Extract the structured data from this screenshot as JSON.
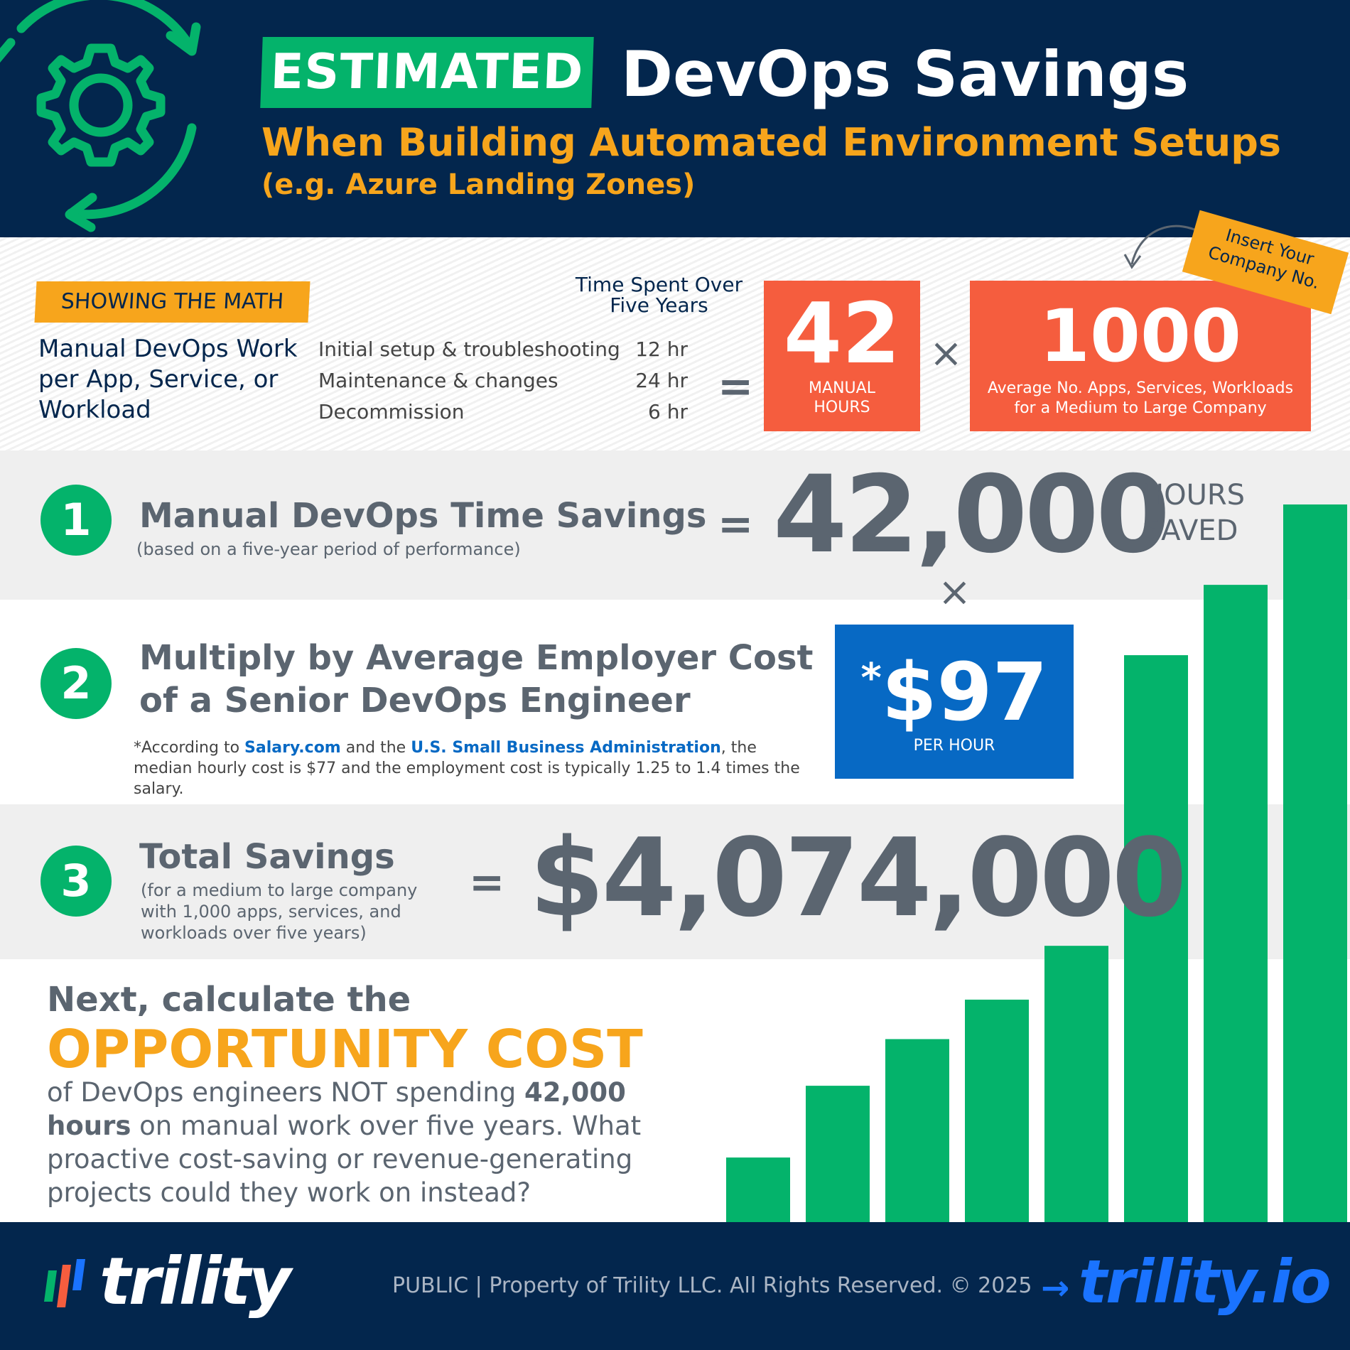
{
  "header": {
    "badge": "ESTIMATED",
    "title": "DevOps Savings",
    "subtitle": "When Building Automated Environment Setups",
    "subtitle_example": "(e.g. Azure Landing Zones)"
  },
  "math": {
    "label": "SHOWING THE MATH",
    "manual_work": "Manual DevOps Work per App, Service, or Workload",
    "time_header": "Time Spent Over Five Years",
    "tasks": [
      {
        "task": "Initial setup & troubleshooting",
        "hours": "12 hr"
      },
      {
        "task": "Maintenance & changes",
        "hours": "24 hr"
      },
      {
        "task": "Decommission",
        "hours": "6 hr"
      }
    ],
    "equals": "=",
    "manual_hours_value": "42",
    "manual_hours_label": "MANUAL HOURS",
    "times": "×",
    "apps_value": "1000",
    "apps_label": "Average No. Apps, Services, Workloads for a Medium to Large Company",
    "insert_note": "Insert Your Company No."
  },
  "step1": {
    "number": "1",
    "title": "Manual DevOps Time Savings",
    "sub": "(based on a five-year period of performance)",
    "equals": "=",
    "value": "42,000",
    "unit": "HOURS SAVED",
    "times": "×"
  },
  "step2": {
    "number": "2",
    "title_line1": "Multiply by Average Employer Cost",
    "title_line2": "of a Senior DevOps Engineer",
    "footnote_prefix": "*According to",
    "footnote_link1": "Salary.com",
    "footnote_mid": "and the",
    "footnote_link2": "U.S. Small Business Administration",
    "footnote_suffix": ", the median hourly cost is $77 and the employment cost is typically 1.25 to 1.4 times the salary.",
    "rate_star": "*",
    "rate_value": "$97",
    "rate_unit": "PER HOUR"
  },
  "step3": {
    "number": "3",
    "title": "Total Savings",
    "sub": "(for a medium to large company with 1,000 apps, services, and workloads over five years)",
    "equals": "=",
    "value": "$4,074,000"
  },
  "cta": {
    "lead": "Next, calculate the",
    "title": "OPPORTUNITY COST",
    "body_prefix": "of DevOps engineers NOT spending",
    "body_bold": "42,000 hours",
    "body_suffix": "on manual work over five years. What proactive cost-saving or revenue-generating projects could they work on instead?"
  },
  "decor_bars": {
    "levels": [
      0.09,
      0.19,
      0.255,
      0.31,
      0.385,
      0.79,
      0.888,
      1.0
    ],
    "color": "#04b36b"
  },
  "footer": {
    "logo_text": "trility",
    "text": "PUBLIC  |  Property of Trility LLC. All Rights Reserved. © 2025",
    "site_arrow": "→",
    "site": "trility.io"
  },
  "colors": {
    "navy": "#03264d",
    "green": "#04b36b",
    "orange": "#f7a51c",
    "coral": "#f55d3e",
    "blue": "#0769c4",
    "gray_text": "#5b6570"
  }
}
